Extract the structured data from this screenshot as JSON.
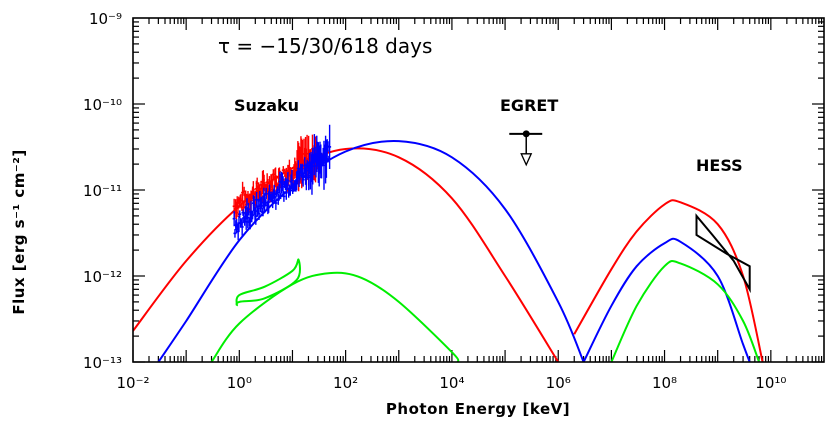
{
  "chart_data": {
    "type": "line",
    "xlabel": "Photon Energy [keV]",
    "ylabel": "Flux  [erg s⁻¹ cm⁻²]",
    "xscale": "log",
    "yscale": "log",
    "xlim": [
      0.01,
      100000000000.0
    ],
    "ylim": [
      1e-13,
      1e-09
    ],
    "x_tick_labels": [
      "10⁻²",
      "10⁰",
      "10²",
      "10⁴",
      "10⁶",
      "10⁸",
      "10¹⁰"
    ],
    "y_tick_labels": [
      "10⁻¹³",
      "10⁻¹²",
      "10⁻¹¹",
      "10⁻¹⁰",
      "10⁻⁹"
    ],
    "annotations": {
      "tau": "τ = −15/30/618 days",
      "suzaku": "Suzaku",
      "egret": "EGRET",
      "hess": "HESS"
    },
    "colors": {
      "red": "#ff0000",
      "blue": "#0000ff",
      "green": "#00ee00",
      "black": "#000000"
    },
    "series": [
      {
        "color": "red",
        "segment": "synchrotron",
        "points": [
          [
            0.01,
            2.3e-13
          ],
          [
            0.1,
            1.5e-12
          ],
          [
            1,
            6.5e-12
          ],
          [
            10,
            1.8e-11
          ],
          [
            100,
            3e-11
          ],
          [
            1000,
            2.4e-11
          ],
          [
            10000,
            8e-12
          ],
          [
            100000,
            1e-12
          ],
          [
            1000000.0,
            1e-13
          ]
        ]
      },
      {
        "color": "blue",
        "segment": "synchrotron",
        "points": [
          [
            0.03,
            1e-13
          ],
          [
            0.1,
            3e-13
          ],
          [
            1,
            2.6e-12
          ],
          [
            10,
            1.1e-11
          ],
          [
            100,
            2.8e-11
          ],
          [
            1000,
            3.7e-11
          ],
          [
            10000,
            2.4e-11
          ],
          [
            100000,
            6e-12
          ],
          [
            1000000.0,
            5e-13
          ],
          [
            3000000.0,
            1e-13
          ]
        ]
      },
      {
        "color": "green",
        "segment": "synchrotron",
        "points": [
          [
            0.3,
            1e-13
          ],
          [
            1,
            2.8e-13
          ],
          [
            10,
            8e-13
          ],
          [
            50,
            1.08e-12
          ],
          [
            200,
            9.5e-13
          ],
          [
            1000,
            5e-13
          ],
          [
            10000,
            1.3e-13
          ],
          [
            13000,
            1e-13
          ]
        ]
      },
      {
        "color": "red",
        "segment": "inverse-compton",
        "points": [
          [
            2000000.0,
            2.1e-13
          ],
          [
            10000000.0,
            1.2e-12
          ],
          [
            30000000.0,
            3.3e-12
          ],
          [
            100000000.0,
            6.8e-12
          ],
          [
            200000000.0,
            7.2e-12
          ],
          [
            1000000000.0,
            4e-12
          ],
          [
            3000000000.0,
            1e-12
          ],
          [
            7000000000.0,
            1e-13
          ]
        ]
      },
      {
        "color": "blue",
        "segment": "inverse-compton",
        "points": [
          [
            3000000.0,
            1e-13
          ],
          [
            10000000.0,
            4.5e-13
          ],
          [
            30000000.0,
            1.3e-12
          ],
          [
            100000000.0,
            2.4e-12
          ],
          [
            200000000.0,
            2.5e-12
          ],
          [
            1000000000.0,
            1e-12
          ],
          [
            3000000000.0,
            1.6e-13
          ],
          [
            4000000000.0,
            1e-13
          ]
        ]
      },
      {
        "color": "green",
        "segment": "inverse-compton",
        "points": [
          [
            10000000.0,
            1e-13
          ],
          [
            30000000.0,
            4.5e-13
          ],
          [
            100000000.0,
            1.3e-12
          ],
          [
            200000000.0,
            1.4e-12
          ],
          [
            1000000000.0,
            8e-13
          ],
          [
            3000000000.0,
            3e-13
          ],
          [
            6000000000.0,
            1e-13
          ]
        ]
      }
    ],
    "green_bowtie_points": [
      [
        0.9,
        4.5e-13
      ],
      [
        1,
        6e-13
      ],
      [
        3,
        7.5e-13
      ],
      [
        10,
        1.15e-12
      ],
      [
        13,
        1.55e-12
      ],
      [
        12,
        9e-13
      ],
      [
        3,
        5.5e-13
      ],
      [
        1,
        5e-13
      ]
    ],
    "hess_bowtie_points": [
      [
        400000000.0,
        5e-12
      ],
      [
        400000000.0,
        3e-12
      ],
      [
        1500000000.0,
        1.8e-12
      ],
      [
        4000000000.0,
        1.3e-12
      ],
      [
        4000000000.0,
        7e-13
      ],
      [
        2000000000.0,
        1.5e-12
      ],
      [
        800000000.0,
        3e-12
      ]
    ],
    "egret": {
      "x": 250000.0,
      "y_upper_limit": 4.5e-11,
      "x_low": 120000.0,
      "x_high": 500000.0
    },
    "suzaku_data": {
      "red": {
        "x_range": [
          0.8,
          30
        ],
        "y_at_low": 6.5e-12,
        "y_at_high": 2.6e-11
      },
      "blue": {
        "x_range": [
          0.8,
          50
        ],
        "y_at_low": 3.8e-12,
        "y_at_high": 2.8e-11
      }
    },
    "grid": false,
    "legend": "none"
  }
}
